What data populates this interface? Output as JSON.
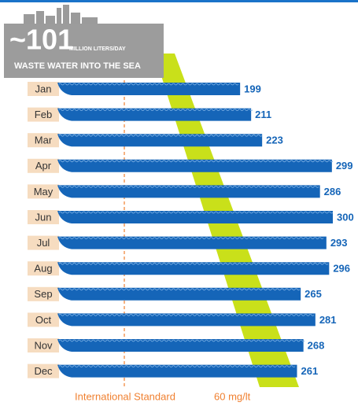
{
  "chart_data": {
    "type": "bar",
    "headline": "~101",
    "headline_unit": "MILLION LITERS/DAY",
    "subtitle": "WASTE WATER INTO THE SEA",
    "categories": [
      "Jan",
      "Feb",
      "Mar",
      "Apr",
      "May",
      "Jun",
      "Jul",
      "Aug",
      "Sep",
      "Oct",
      "Nov",
      "Dec"
    ],
    "values": [
      199,
      211,
      223,
      299,
      286,
      300,
      293,
      296,
      265,
      281,
      268,
      261
    ],
    "color": "#1565b8",
    "reference_label": "International Standard",
    "reference_value_label": "60 mg/lt"
  }
}
